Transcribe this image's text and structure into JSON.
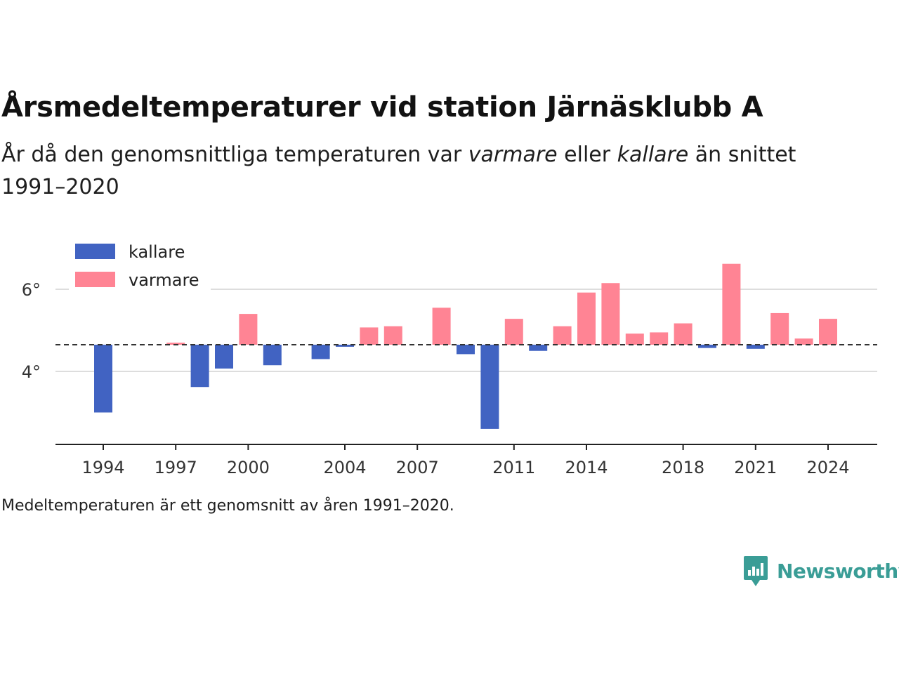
{
  "title": "Årsmedeltemperaturer vid station Järnäsklubb A",
  "subtitle": {
    "part1": "År då den genomsnittliga temperaturen var ",
    "warm_word": "varmare",
    "part2": " eller ",
    "cold_word": "kallare",
    "part3": " än snittet 1991–2020"
  },
  "note": "Medeltemperaturen är ett genomsnitt av åren 1991–2020.",
  "brand": "Newsworthy",
  "colors": {
    "kallare": "#4163c2",
    "varmare": "#ff8494",
    "baseline": "#333333",
    "grid": "#dddddd",
    "brand": "#3a9d96"
  },
  "chart_data": {
    "type": "bar",
    "baseline": 4.65,
    "ylim": [
      2.2,
      7.3
    ],
    "yticks": [
      4,
      6
    ],
    "ytick_labels": [
      "4°",
      "6°"
    ],
    "xticks": [
      1994,
      1997,
      2000,
      2004,
      2007,
      2011,
      2014,
      2018,
      2021,
      2024
    ],
    "legend": [
      {
        "key": "kallare",
        "label": "kallare"
      },
      {
        "key": "varmare",
        "label": "varmare"
      }
    ],
    "legend_position": "top-left",
    "grid": true,
    "series": [
      {
        "x": 1994,
        "y": 3.0
      },
      {
        "x": 1997,
        "y": 4.7
      },
      {
        "x": 1998,
        "y": 3.62
      },
      {
        "x": 1999,
        "y": 4.07
      },
      {
        "x": 2000,
        "y": 5.4
      },
      {
        "x": 2001,
        "y": 4.15
      },
      {
        "x": 2003,
        "y": 4.3
      },
      {
        "x": 2004,
        "y": 4.6
      },
      {
        "x": 2005,
        "y": 5.07
      },
      {
        "x": 2006,
        "y": 5.1
      },
      {
        "x": 2008,
        "y": 5.55
      },
      {
        "x": 2009,
        "y": 4.42
      },
      {
        "x": 2010,
        "y": 2.6
      },
      {
        "x": 2011,
        "y": 5.28
      },
      {
        "x": 2012,
        "y": 4.5
      },
      {
        "x": 2013,
        "y": 5.1
      },
      {
        "x": 2014,
        "y": 5.92
      },
      {
        "x": 2015,
        "y": 6.15
      },
      {
        "x": 2016,
        "y": 4.92
      },
      {
        "x": 2017,
        "y": 4.95
      },
      {
        "x": 2018,
        "y": 5.17
      },
      {
        "x": 2019,
        "y": 4.57
      },
      {
        "x": 2020,
        "y": 6.62
      },
      {
        "x": 2021,
        "y": 4.55
      },
      {
        "x": 2022,
        "y": 5.42
      },
      {
        "x": 2023,
        "y": 4.8
      },
      {
        "x": 2024,
        "y": 5.28
      }
    ]
  }
}
